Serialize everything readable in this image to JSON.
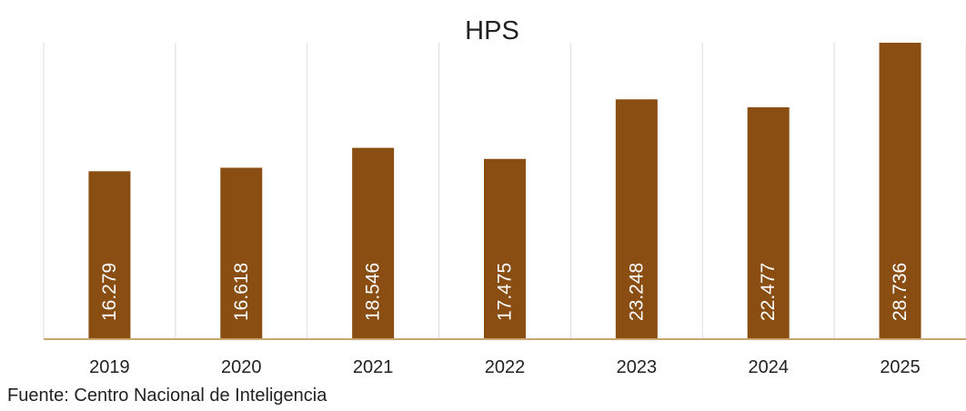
{
  "chart_data": {
    "type": "bar",
    "title": "HPS",
    "categories": [
      "2019",
      "2020",
      "2021",
      "2022",
      "2023",
      "2024",
      "2025"
    ],
    "values": [
      16279,
      16618,
      18546,
      17475,
      23248,
      22477,
      28736
    ],
    "value_labels": [
      "16.279",
      "16.618",
      "18.546",
      "17.475",
      "23.248",
      "22.477",
      "28.736"
    ],
    "ylim": [
      0,
      28736
    ],
    "grid": "vertical-separators",
    "legend": "none",
    "colors": {
      "bar": "#8B4E12",
      "axis": "#C9A56E",
      "grid": "#DDDDDD",
      "label_text": "#FFFFFF"
    }
  },
  "source": "Fuente: Centro Nacional de Inteligencia"
}
